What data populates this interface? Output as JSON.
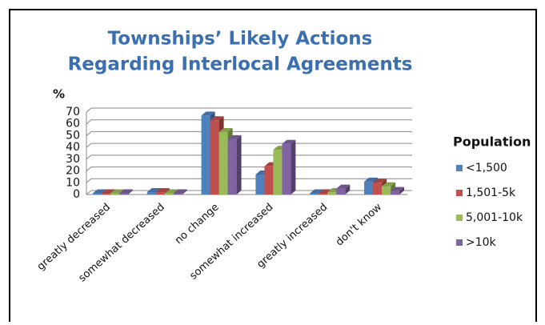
{
  "chart_data": {
    "type": "bar",
    "title": [
      "Townships’ Likely Actions",
      "Regarding Interlocal Agreements"
    ],
    "y_label": "%",
    "legend_title": "Population",
    "legend": "right",
    "categories": [
      "greatly decreased",
      "somewhat decreased",
      "no change",
      "somewhat increased",
      "greatly increased",
      "don't know"
    ],
    "series": [
      {
        "name": "<1,500",
        "color": "#4f81bd",
        "values": [
          1,
          2,
          67,
          17,
          1,
          11
        ]
      },
      {
        "name": "1,501-5k",
        "color": "#c0504d",
        "values": [
          1,
          2,
          63,
          24,
          1,
          10
        ]
      },
      {
        "name": "5,001-10k",
        "color": "#9bbb59",
        "values": [
          1,
          1,
          53,
          38,
          2,
          7
        ]
      },
      {
        "name": ">10k",
        "color": "#8064a2",
        "values": [
          1,
          1,
          47,
          43,
          5,
          3
        ]
      }
    ],
    "ylim": [
      0,
      70
    ],
    "yticks": [
      0,
      10,
      20,
      30,
      40,
      50,
      60,
      70
    ],
    "grid": true
  }
}
